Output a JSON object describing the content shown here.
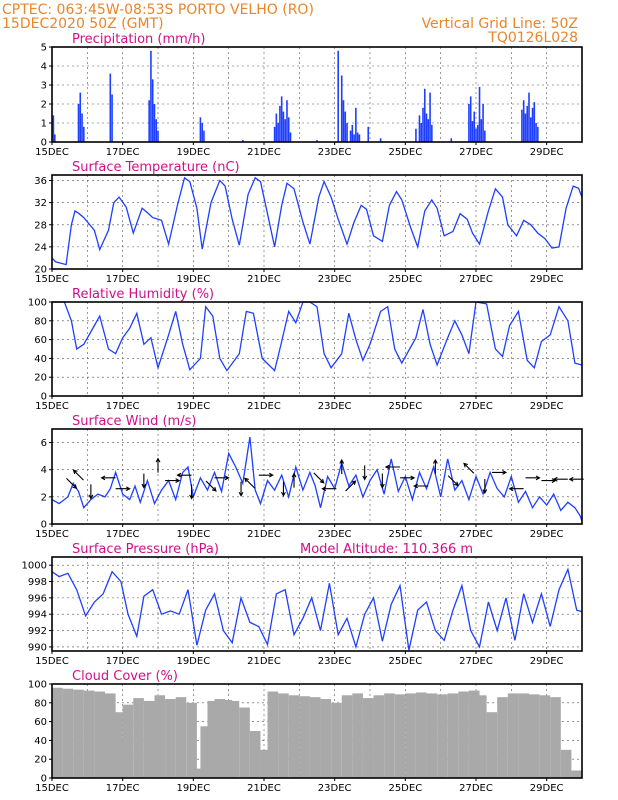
{
  "header": {
    "line1_left": "CPTEC:   063:45W-08:53S  PORTO VELHO (RO)",
    "line2_left": "15DEC2020 50Z (GMT)",
    "line2_right": "Vertical Grid Line: 50Z",
    "line3_right": "TQ0126L028"
  },
  "colors": {
    "header": "#e8862a",
    "panel_title": "#d0108a",
    "line": "#1f3fff",
    "bar": "#1f3fff",
    "cloud": "#a9a9a9",
    "arrow": "#000000"
  },
  "chart_data": [
    {
      "type": "bar",
      "title": "Precipitation  (mm/h)",
      "ylim": [
        0,
        5
      ],
      "yticks": [
        0,
        1,
        2,
        3,
        4,
        5
      ],
      "xlim": [
        15,
        30
      ],
      "xticks": [
        "15DEC",
        "17DEC",
        "19DEC",
        "21DEC",
        "23DEC",
        "25DEC",
        "27DEC",
        "29DEC"
      ],
      "xtick_positions": [
        15,
        17,
        19,
        21,
        23,
        25,
        27,
        29
      ],
      "grid": true,
      "x": [
        15.04,
        15.08,
        15.75,
        15.8,
        15.85,
        15.9,
        16.65,
        16.7,
        17.75,
        17.8,
        17.85,
        17.9,
        17.95,
        18.0,
        19.2,
        19.25,
        19.3,
        20.4,
        21.3,
        21.35,
        21.4,
        21.45,
        21.5,
        21.55,
        21.6,
        21.65,
        21.7,
        21.75,
        22.5,
        23.1,
        23.2,
        23.25,
        23.3,
        23.35,
        23.45,
        23.5,
        23.55,
        23.6,
        23.65,
        23.7,
        23.95,
        24.3,
        25.3,
        25.4,
        25.45,
        25.5,
        25.55,
        25.6,
        25.65,
        25.7,
        25.75,
        26.3,
        26.8,
        26.85,
        26.9,
        26.95,
        27.0,
        27.05,
        27.1,
        27.15,
        27.2,
        27.25,
        28.3,
        28.35,
        28.4,
        28.45,
        28.5,
        28.55,
        28.6,
        28.65,
        28.7,
        28.75
      ],
      "values": [
        1.4,
        0.4,
        2.0,
        2.6,
        1.5,
        0.8,
        3.6,
        2.5,
        2.2,
        4.8,
        3.3,
        2.0,
        1.2,
        0.6,
        1.3,
        1.0,
        0.6,
        0.1,
        0.8,
        1.5,
        1.0,
        1.9,
        2.4,
        1.6,
        1.2,
        2.2,
        1.3,
        0.5,
        0.1,
        4.8,
        3.5,
        2.2,
        1.6,
        1.0,
        0.6,
        0.9,
        0.4,
        1.8,
        0.5,
        0.4,
        0.8,
        0.2,
        0.7,
        1.4,
        1.0,
        1.8,
        2.8,
        1.5,
        1.2,
        2.6,
        0.9,
        0.2,
        2.0,
        2.4,
        1.1,
        1.6,
        0.7,
        0.9,
        2.9,
        1.2,
        2.0,
        0.6,
        1.7,
        2.2,
        1.5,
        1.9,
        2.6,
        1.3,
        1.8,
        2.1,
        1.0,
        0.8
      ]
    },
    {
      "type": "line",
      "title": "Surface Temperature (nC)",
      "ylim": [
        20,
        37
      ],
      "yticks": [
        20,
        24,
        28,
        32,
        36
      ],
      "xlim": [
        15,
        30
      ],
      "xticks": [
        "15DEC",
        "17DEC",
        "19DEC",
        "21DEC",
        "23DEC",
        "25DEC",
        "27DEC",
        "29DEC"
      ],
      "xtick_positions": [
        15,
        17,
        19,
        21,
        23,
        25,
        27,
        29
      ],
      "grid": true,
      "x": [
        15.0,
        15.1,
        15.4,
        15.55,
        15.65,
        15.75,
        15.9,
        16.2,
        16.35,
        16.6,
        16.75,
        16.9,
        17.1,
        17.3,
        17.55,
        17.7,
        17.85,
        18.1,
        18.3,
        18.55,
        18.75,
        18.9,
        19.1,
        19.25,
        19.5,
        19.75,
        19.9,
        20.1,
        20.3,
        20.55,
        20.75,
        20.9,
        21.1,
        21.3,
        21.5,
        21.65,
        21.85,
        22.1,
        22.3,
        22.55,
        22.7,
        22.9,
        23.1,
        23.35,
        23.55,
        23.75,
        23.9,
        24.1,
        24.35,
        24.55,
        24.75,
        24.9,
        25.15,
        25.35,
        25.55,
        25.75,
        25.9,
        26.1,
        26.35,
        26.55,
        26.75,
        26.9,
        27.1,
        27.35,
        27.55,
        27.75,
        27.9,
        28.15,
        28.35,
        28.55,
        28.75,
        28.95,
        29.15,
        29.35,
        29.55,
        29.75,
        29.9,
        30.0
      ],
      "values": [
        22.0,
        21.3,
        20.8,
        28.0,
        30.5,
        30.1,
        29.3,
        27.0,
        23.5,
        27.0,
        32.0,
        33.0,
        31.2,
        26.5,
        31.0,
        30.2,
        29.3,
        28.8,
        24.5,
        31.5,
        36.5,
        35.8,
        31.0,
        23.6,
        32.0,
        36.0,
        35.0,
        29.0,
        24.3,
        33.5,
        36.5,
        35.8,
        30.0,
        24.0,
        31.5,
        35.5,
        34.5,
        28.5,
        24.5,
        33.0,
        35.8,
        33.0,
        29.0,
        24.5,
        28.5,
        31.5,
        30.8,
        26.0,
        25.0,
        31.5,
        34.0,
        32.5,
        27.5,
        24.0,
        30.5,
        32.5,
        31.0,
        26.0,
        26.8,
        30.0,
        29.0,
        26.5,
        24.5,
        30.5,
        34.5,
        33.0,
        28.0,
        26.0,
        28.8,
        28.0,
        26.5,
        25.5,
        23.8,
        24.0,
        31.0,
        35.0,
        34.6,
        33.0
      ]
    },
    {
      "type": "line",
      "title": "Relative Humidity  (%)",
      "ylim": [
        0,
        100
      ],
      "yticks": [
        0,
        20,
        40,
        60,
        80,
        100
      ],
      "xlim": [
        15,
        30
      ],
      "xticks": [
        "15DEC",
        "17DEC",
        "19DEC",
        "21DEC",
        "23DEC",
        "25DEC",
        "27DEC",
        "29DEC"
      ],
      "xtick_positions": [
        15,
        17,
        19,
        21,
        23,
        25,
        27,
        29
      ],
      "grid": true,
      "x": [
        15.0,
        15.35,
        15.55,
        15.7,
        15.9,
        16.2,
        16.35,
        16.6,
        16.8,
        17.0,
        17.2,
        17.4,
        17.6,
        17.8,
        18.0,
        18.3,
        18.5,
        18.7,
        18.9,
        19.2,
        19.35,
        19.55,
        19.75,
        19.95,
        20.3,
        20.5,
        20.7,
        20.95,
        21.3,
        21.45,
        21.7,
        21.9,
        22.1,
        22.3,
        22.5,
        22.7,
        22.9,
        23.2,
        23.4,
        23.6,
        23.8,
        24.0,
        24.3,
        24.5,
        24.7,
        24.9,
        25.3,
        25.5,
        25.7,
        25.9,
        26.2,
        26.4,
        26.6,
        26.8,
        27.0,
        27.3,
        27.55,
        27.75,
        27.95,
        28.2,
        28.45,
        28.65,
        28.85,
        29.1,
        29.35,
        29.6,
        29.8,
        30.0
      ],
      "values": [
        100,
        100,
        80,
        50,
        55,
        75,
        85,
        50,
        45,
        62,
        72,
        88,
        55,
        62,
        30,
        65,
        90,
        55,
        28,
        40,
        95,
        85,
        40,
        27,
        45,
        90,
        88,
        40,
        27,
        50,
        90,
        78,
        100,
        100,
        95,
        45,
        30,
        45,
        88,
        60,
        38,
        55,
        90,
        95,
        50,
        35,
        62,
        92,
        55,
        33,
        62,
        80,
        65,
        45,
        100,
        98,
        50,
        42,
        75,
        90,
        38,
        30,
        58,
        65,
        95,
        80,
        35,
        33
      ]
    },
    {
      "type": "line",
      "title": "Surface Wind  (m/s)",
      "ylim": [
        0,
        7
      ],
      "yticks": [
        0,
        2,
        4,
        6
      ],
      "xlim": [
        15,
        30
      ],
      "xticks": [
        "15DEC",
        "17DEC",
        "19DEC",
        "21DEC",
        "23DEC",
        "25DEC",
        "27DEC",
        "29DEC"
      ],
      "xtick_positions": [
        15,
        17,
        19,
        21,
        23,
        25,
        27,
        29
      ],
      "grid": true,
      "x": [
        15.0,
        15.2,
        15.45,
        15.6,
        15.75,
        15.9,
        16.1,
        16.3,
        16.5,
        16.65,
        16.8,
        17.0,
        17.2,
        17.35,
        17.5,
        17.7,
        17.9,
        18.1,
        18.3,
        18.5,
        18.7,
        18.85,
        19.0,
        19.2,
        19.4,
        19.6,
        19.8,
        20.0,
        20.2,
        20.4,
        20.6,
        20.75,
        20.9,
        21.1,
        21.3,
        21.5,
        21.7,
        21.9,
        22.1,
        22.3,
        22.45,
        22.6,
        22.8,
        23.0,
        23.2,
        23.4,
        23.6,
        23.8,
        24.0,
        24.2,
        24.4,
        24.6,
        24.8,
        25.0,
        25.2,
        25.4,
        25.6,
        25.8,
        26.0,
        26.2,
        26.4,
        26.6,
        26.8,
        27.0,
        27.2,
        27.4,
        27.6,
        27.8,
        28.0,
        28.2,
        28.4,
        28.6,
        28.8,
        29.0,
        29.2,
        29.4,
        29.6,
        29.8,
        29.95,
        30.0
      ],
      "values": [
        1.8,
        1.5,
        2.0,
        3.0,
        2.4,
        1.2,
        1.8,
        2.2,
        2.0,
        2.6,
        3.8,
        2.2,
        1.8,
        2.8,
        1.6,
        3.2,
        1.5,
        2.5,
        3.2,
        1.8,
        3.8,
        4.2,
        2.0,
        3.4,
        2.5,
        3.8,
        2.4,
        5.2,
        4.2,
        3.0,
        6.4,
        2.5,
        1.5,
        3.2,
        2.5,
        3.6,
        2.0,
        4.2,
        2.5,
        3.8,
        2.8,
        1.2,
        3.5,
        2.6,
        4.5,
        2.8,
        3.6,
        2.0,
        3.2,
        4.0,
        2.2,
        4.8,
        2.4,
        3.5,
        1.8,
        3.8,
        2.6,
        4.2,
        2.0,
        4.8,
        2.5,
        3.2,
        1.8,
        3.5,
        2.2,
        3.8,
        2.6,
        2.0,
        3.5,
        1.6,
        2.4,
        1.2,
        2.0,
        1.4,
        2.2,
        1.0,
        1.6,
        1.2,
        0.6,
        0.2
      ],
      "arrows": {
        "x": [
          15.55,
          15.75,
          16.1,
          16.6,
          17.0,
          17.6,
          18.0,
          18.4,
          18.75,
          18.95,
          19.5,
          19.8,
          20.35,
          20.6,
          21.05,
          21.55,
          21.85,
          22.55,
          22.85,
          23.2,
          23.45,
          23.85,
          24.35,
          24.65,
          25.05,
          25.45,
          25.85,
          26.35,
          26.8,
          27.25,
          27.65,
          28.15,
          28.6,
          29.05,
          29.4,
          29.85
        ],
        "y": [
          3.0,
          3.6,
          2.4,
          3.4,
          2.6,
          3.2,
          4.3,
          3.2,
          3.6,
          2.4,
          2.8,
          3.4,
          2.6,
          3.0,
          3.6,
          2.6,
          3.2,
          3.4,
          2.6,
          4.2,
          2.8,
          3.8,
          3.2,
          4.2,
          3.4,
          2.8,
          4.2,
          3.2,
          4.1,
          2.8,
          3.8,
          2.6,
          3.4,
          3.2,
          3.3,
          3.3
        ],
        "u": [
          1,
          -1,
          0,
          -1,
          1,
          0,
          0,
          1,
          -1,
          0,
          1,
          1,
          0,
          -1,
          1,
          0,
          0,
          1,
          -1,
          0,
          1,
          0,
          0,
          -1,
          1,
          -1,
          0,
          1,
          -1,
          0,
          1,
          -1,
          1,
          1,
          -1,
          -1
        ],
        "v": [
          -1,
          1,
          -1,
          0,
          0,
          -1,
          1,
          0,
          0,
          -1,
          -1,
          0,
          -1,
          1,
          0,
          -1,
          1,
          -1,
          0,
          1,
          1,
          -1,
          -1,
          0,
          0,
          0,
          1,
          -1,
          1,
          -1,
          0,
          0,
          0,
          0,
          0,
          0
        ]
      }
    },
    {
      "type": "line",
      "title": "Surface Pressure (hPa)",
      "annotation": "Model Altitude: 110.366  m",
      "ylim": [
        989.5,
        1001
      ],
      "yticks": [
        990,
        992,
        994,
        996,
        998,
        1000
      ],
      "xlim": [
        15,
        30
      ],
      "xticks": [
        "15DEC",
        "17DEC",
        "19DEC",
        "21DEC",
        "23DEC",
        "25DEC",
        "27DEC",
        "29DEC"
      ],
      "xtick_positions": [
        15,
        17,
        19,
        21,
        23,
        25,
        27,
        29
      ],
      "grid": true,
      "x": [
        15.0,
        15.2,
        15.45,
        15.7,
        15.95,
        16.2,
        16.45,
        16.7,
        16.95,
        17.15,
        17.4,
        17.6,
        17.85,
        18.1,
        18.35,
        18.6,
        18.85,
        19.1,
        19.35,
        19.6,
        19.85,
        20.1,
        20.35,
        20.6,
        20.85,
        21.1,
        21.35,
        21.6,
        21.85,
        22.1,
        22.35,
        22.6,
        22.85,
        23.1,
        23.35,
        23.6,
        23.85,
        24.1,
        24.35,
        24.6,
        24.85,
        25.1,
        25.35,
        25.6,
        25.85,
        26.1,
        26.35,
        26.6,
        26.85,
        27.1,
        27.35,
        27.6,
        27.85,
        28.1,
        28.35,
        28.6,
        28.85,
        29.1,
        29.35,
        29.6,
        29.85,
        30.0
      ],
      "values": [
        999.2,
        998.6,
        999.0,
        997.0,
        993.8,
        995.5,
        996.5,
        999.2,
        998.0,
        994.0,
        991.3,
        996.2,
        997.0,
        994.0,
        994.4,
        994.0,
        997.0,
        990.2,
        994.5,
        996.5,
        992.0,
        990.5,
        996.0,
        993.0,
        992.5,
        990.3,
        996.5,
        997.0,
        991.5,
        993.5,
        996.0,
        992.0,
        997.8,
        991.5,
        993.5,
        990.0,
        994.0,
        996.0,
        990.7,
        995.2,
        997.5,
        989.6,
        994.5,
        995.5,
        992.0,
        990.8,
        994.5,
        997.5,
        992.0,
        990.0,
        995.5,
        992.0,
        996.0,
        990.8,
        996.5,
        993.0,
        996.5,
        992.5,
        997.0,
        999.5,
        994.5,
        994.3
      ]
    },
    {
      "type": "area",
      "title": "Cloud Cover  (%)",
      "ylim": [
        0,
        100
      ],
      "yticks": [
        0,
        20,
        40,
        60,
        80,
        100
      ],
      "xlim": [
        15,
        30
      ],
      "xticks": [
        "15DEC",
        "17DEC",
        "19DEC",
        "21DEC",
        "23DEC",
        "25DEC",
        "27DEC",
        "29DEC"
      ],
      "xtick_positions": [
        15,
        17,
        19,
        21,
        23,
        25,
        27,
        29
      ],
      "grid": true,
      "x": [
        15.0,
        15.3,
        15.6,
        15.9,
        16.2,
        16.5,
        16.7,
        16.85,
        17.0,
        17.3,
        17.6,
        17.9,
        18.2,
        18.5,
        18.8,
        19.0,
        19.2,
        19.4,
        19.6,
        19.8,
        20.0,
        20.3,
        20.6,
        20.9,
        21.1,
        21.4,
        21.7,
        22.0,
        22.3,
        22.6,
        22.9,
        23.2,
        23.5,
        23.8,
        24.1,
        24.4,
        24.7,
        25.0,
        25.3,
        25.6,
        25.9,
        26.2,
        26.5,
        26.8,
        27.0,
        27.3,
        27.6,
        27.9,
        28.2,
        28.5,
        28.8,
        29.1,
        29.4,
        29.7,
        30.0
      ],
      "values": [
        96,
        95,
        94,
        93,
        92,
        90,
        70,
        40,
        78,
        85,
        82,
        88,
        84,
        86,
        80,
        10,
        55,
        82,
        84,
        83,
        82,
        75,
        50,
        30,
        92,
        90,
        88,
        87,
        86,
        84,
        80,
        88,
        90,
        85,
        88,
        90,
        89,
        90,
        91,
        90,
        89,
        90,
        92,
        93,
        88,
        70,
        86,
        90,
        90,
        89,
        88,
        86,
        30,
        8,
        90
      ]
    }
  ]
}
